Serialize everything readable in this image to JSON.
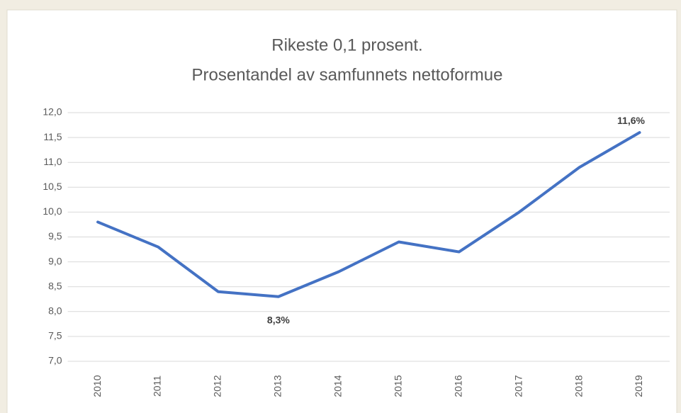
{
  "chart_data": {
    "type": "line",
    "title": "Rikeste 0,1 prosent.",
    "subtitle": "Prosentandel av samfunnets nettoformue",
    "categories": [
      "2010",
      "2011",
      "2012",
      "2013",
      "2014",
      "2015",
      "2016",
      "2017",
      "2018",
      "2019"
    ],
    "values": [
      9.8,
      9.3,
      8.4,
      8.3,
      8.8,
      9.4,
      9.2,
      10.0,
      10.9,
      11.6
    ],
    "value_labels": [
      null,
      null,
      null,
      "8,3%",
      null,
      null,
      null,
      null,
      null,
      "11,6%"
    ],
    "color": "#4472c4",
    "ylim": [
      7,
      12
    ],
    "yticks": [
      {
        "value": 7,
        "label": "7,0"
      },
      {
        "value": 7.5,
        "label": "7,5"
      },
      {
        "value": 8,
        "label": "8,0"
      },
      {
        "value": 8.5,
        "label": "8,5"
      },
      {
        "value": 9,
        "label": "9,0"
      },
      {
        "value": 9.5,
        "label": "9,5"
      },
      {
        "value": 10,
        "label": "10,0"
      },
      {
        "value": 10.5,
        "label": "10,5"
      },
      {
        "value": 11,
        "label": "11,0"
      },
      {
        "value": 11.5,
        "label": "11,5"
      },
      {
        "value": 12,
        "label": "12,0"
      }
    ],
    "grid": true
  }
}
